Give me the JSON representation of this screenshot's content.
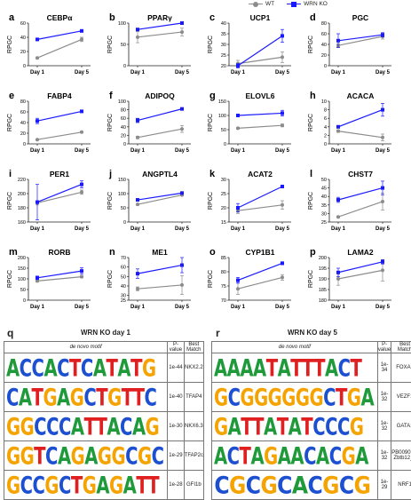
{
  "legend": {
    "wt_label": "WT",
    "ko_label": "WRN KO",
    "wt_color": "#8c8c8c",
    "ko_color": "#1a1aff"
  },
  "chart_data": [
    {
      "panel": "a",
      "title": "CEBPα",
      "type": "line",
      "ylabel": "RPGC",
      "categories": [
        "Day 1",
        "Day 5"
      ],
      "ylim": [
        0,
        60
      ],
      "yticks": [
        0,
        20,
        40,
        60
      ],
      "series": [
        {
          "name": "WT",
          "values": [
            11,
            37
          ],
          "err": [
            1,
            3
          ]
        },
        {
          "name": "WRN KO",
          "values": [
            37,
            49
          ],
          "err": [
            1,
            1
          ]
        }
      ]
    },
    {
      "panel": "b",
      "title": "PPARγ",
      "type": "line",
      "ylabel": "RPGC",
      "categories": [
        "Day 1",
        "Day 5"
      ],
      "ylim": [
        0,
        100
      ],
      "yticks": [
        0,
        50,
        100
      ],
      "series": [
        {
          "name": "WT",
          "values": [
            67,
            79
          ],
          "err": [
            13,
            9
          ]
        },
        {
          "name": "WRN KO",
          "values": [
            85,
            100
          ],
          "err": [
            2,
            2
          ]
        }
      ]
    },
    {
      "panel": "c",
      "title": "UCP1",
      "type": "line",
      "ylabel": "RPGC",
      "categories": [
        "Day 1",
        "Day 5"
      ],
      "ylim": [
        20,
        40
      ],
      "yticks": [
        20,
        25,
        30,
        35,
        40
      ],
      "series": [
        {
          "name": "WT",
          "values": [
            21,
            24
          ],
          "err": [
            1.5,
            2.5
          ]
        },
        {
          "name": "WRN KO",
          "values": [
            20,
            34
          ],
          "err": [
            1,
            3
          ]
        }
      ]
    },
    {
      "panel": "d",
      "title": "PGC",
      "type": "line",
      "ylabel": "RPGC",
      "categories": [
        "Day 1",
        "Day 5"
      ],
      "ylim": [
        0,
        80
      ],
      "yticks": [
        0,
        20,
        40,
        60,
        80
      ],
      "series": [
        {
          "name": "WT",
          "values": [
            38,
            55
          ],
          "err": [
            3,
            5
          ]
        },
        {
          "name": "WRN KO",
          "values": [
            47,
            58
          ],
          "err": [
            13,
            4
          ]
        }
      ]
    },
    {
      "panel": "e",
      "title": "FABP4",
      "type": "line",
      "ylabel": "RPGC",
      "categories": [
        "Day 1",
        "Day 5"
      ],
      "ylim": [
        0,
        80
      ],
      "yticks": [
        0,
        20,
        40,
        60,
        80
      ],
      "series": [
        {
          "name": "WT",
          "values": [
            8,
            22
          ],
          "err": [
            1,
            1
          ]
        },
        {
          "name": "WRN KO",
          "values": [
            43,
            61
          ],
          "err": [
            5,
            1
          ]
        }
      ]
    },
    {
      "panel": "f",
      "title": "ADIPOQ",
      "type": "line",
      "ylabel": "RPGC",
      "categories": [
        "Day 1",
        "Day 5"
      ],
      "ylim": [
        0,
        100
      ],
      "yticks": [
        0,
        20,
        40,
        60,
        80,
        100
      ],
      "series": [
        {
          "name": "WT",
          "values": [
            15,
            35
          ],
          "err": [
            3,
            8
          ]
        },
        {
          "name": "WRN KO",
          "values": [
            55,
            82
          ],
          "err": [
            5,
            2
          ]
        }
      ]
    },
    {
      "panel": "g",
      "title": "ELOVL6",
      "type": "line",
      "ylabel": "RPGC",
      "categories": [
        "Day 1",
        "Day 5"
      ],
      "ylim": [
        0,
        150
      ],
      "yticks": [
        0,
        50,
        100,
        150
      ],
      "series": [
        {
          "name": "WT",
          "values": [
            55,
            65
          ],
          "err": [
            3,
            5
          ]
        },
        {
          "name": "WRN KO",
          "values": [
            100,
            108
          ],
          "err": [
            3,
            10
          ]
        }
      ]
    },
    {
      "panel": "h",
      "title": "ACACA",
      "type": "line",
      "ylabel": "RPGC",
      "categories": [
        "Day 1",
        "Day 5"
      ],
      "ylim": [
        0,
        10
      ],
      "yticks": [
        0,
        2,
        4,
        6,
        8,
        10
      ],
      "series": [
        {
          "name": "WT",
          "values": [
            3,
            1.5
          ],
          "err": [
            0.3,
            0.8
          ]
        },
        {
          "name": "WRN KO",
          "values": [
            4,
            8
          ],
          "err": [
            0.2,
            1.5
          ]
        }
      ]
    },
    {
      "panel": "i",
      "title": "PER1",
      "type": "line",
      "ylabel": "RPGC",
      "categories": [
        "Day 1",
        "Day 5"
      ],
      "ylim": [
        160,
        220
      ],
      "yticks": [
        160,
        180,
        200,
        220
      ],
      "series": [
        {
          "name": "WT",
          "values": [
            187,
            202
          ],
          "err": [
            3,
            3
          ]
        },
        {
          "name": "WRN KO",
          "values": [
            188,
            213
          ],
          "err": [
            25,
            5
          ]
        }
      ]
    },
    {
      "panel": "j",
      "title": "ANGPTL4",
      "type": "line",
      "ylabel": "RPGC",
      "categories": [
        "Day 1",
        "Day 5"
      ],
      "ylim": [
        0,
        150
      ],
      "yticks": [
        0,
        50,
        100,
        150
      ],
      "series": [
        {
          "name": "WT",
          "values": [
            62,
            95
          ],
          "err": [
            3,
            3
          ]
        },
        {
          "name": "WRN KO",
          "values": [
            78,
            102
          ],
          "err": [
            2,
            3
          ]
        }
      ]
    },
    {
      "panel": "k",
      "title": "ACAT2",
      "type": "line",
      "ylabel": "RPGC",
      "categories": [
        "Day 1",
        "Day 5"
      ],
      "ylim": [
        15,
        30
      ],
      "yticks": [
        15,
        20,
        25,
        30
      ],
      "series": [
        {
          "name": "WT",
          "values": [
            19,
            21
          ],
          "err": [
            1,
            1.5
          ]
        },
        {
          "name": "WRN KO",
          "values": [
            20,
            27.5
          ],
          "err": [
            1.5,
            0.5
          ]
        }
      ]
    },
    {
      "panel": "l",
      "title": "CHST7",
      "type": "line",
      "ylabel": "RPGC",
      "categories": [
        "Day 1",
        "Day 5"
      ],
      "ylim": [
        25,
        50
      ],
      "yticks": [
        25,
        30,
        35,
        40,
        45,
        50
      ],
      "series": [
        {
          "name": "WT",
          "values": [
            28,
            37
          ],
          "err": [
            0.5,
            5
          ]
        },
        {
          "name": "WRN KO",
          "values": [
            38,
            45
          ],
          "err": [
            1.5,
            4
          ]
        }
      ]
    },
    {
      "panel": "m",
      "title": "RORB",
      "type": "line",
      "ylabel": "RPGC",
      "categories": [
        "Day 1",
        "Day 5"
      ],
      "ylim": [
        0,
        200
      ],
      "yticks": [
        0,
        50,
        100,
        150,
        200
      ],
      "series": [
        {
          "name": "WT",
          "values": [
            90,
            110
          ],
          "err": [
            5,
            5
          ]
        },
        {
          "name": "WRN KO",
          "values": [
            105,
            137
          ],
          "err": [
            8,
            15
          ]
        }
      ]
    },
    {
      "panel": "n",
      "title": "ME1",
      "type": "line",
      "ylabel": "RPGC",
      "categories": [
        "Day 1",
        "Day 5"
      ],
      "ylim": [
        25,
        70
      ],
      "yticks": [
        25,
        30,
        40,
        50,
        60,
        70
      ],
      "series": [
        {
          "name": "WT",
          "values": [
            37,
            41
          ],
          "err": [
            2,
            10
          ]
        },
        {
          "name": "WRN KO",
          "values": [
            53,
            62
          ],
          "err": [
            5,
            8
          ]
        }
      ]
    },
    {
      "panel": "o",
      "title": "CYP1B1",
      "type": "line",
      "ylabel": "RPGC",
      "categories": [
        "Day 1",
        "Day 5"
      ],
      "ylim": [
        70,
        85
      ],
      "yticks": [
        70,
        75,
        80,
        85
      ],
      "series": [
        {
          "name": "WT",
          "values": [
            74,
            78
          ],
          "err": [
            2,
            1
          ]
        },
        {
          "name": "WRN KO",
          "values": [
            77,
            83
          ],
          "err": [
            1,
            0.5
          ]
        }
      ]
    },
    {
      "panel": "p",
      "title": "LAMA2",
      "type": "line",
      "ylabel": "RPGC",
      "categories": [
        "Day 1",
        "Day 5"
      ],
      "ylim": [
        180,
        200
      ],
      "yticks": [
        180,
        185,
        190,
        195,
        200
      ],
      "series": [
        {
          "name": "WT",
          "values": [
            190,
            194
          ],
          "err": [
            3,
            5
          ]
        },
        {
          "name": "WRN KO",
          "values": [
            193,
            198
          ],
          "err": [
            2,
            1
          ]
        }
      ]
    }
  ],
  "motif_tables": [
    {
      "letter": "q",
      "title": "WRN KO day 1",
      "headers": {
        "motif": "de novo motif",
        "pvalue": "P-value",
        "match": "Best Match"
      },
      "rows": [
        {
          "motif": "ACCACTCATATG",
          "pvalue": "1e-44",
          "match": "NKX2.2"
        },
        {
          "motif": "CATGAGCTGTTC",
          "pvalue": "1e-40",
          "match": "TFAP4"
        },
        {
          "motif": "GGCCCATTACAG",
          "pvalue": "1e-30",
          "match": "NKX6.3"
        },
        {
          "motif": "GGTCAGAGGCGC",
          "pvalue": "1e-29",
          "match": "TFAP2c"
        },
        {
          "motif": "GCCGCTGAGATT",
          "pvalue": "1e-28",
          "match": "GFI1b"
        }
      ]
    },
    {
      "letter": "r",
      "title": "WRN KO day 5",
      "headers": {
        "motif": "de novo motif",
        "pvalue": "P-value",
        "match": "Best Match"
      },
      "rows": [
        {
          "motif": "AAAATATTTACT",
          "pvalue": "1e-34",
          "match": "FOXA1"
        },
        {
          "motif": "GCGGGGGGCTGA",
          "pvalue": "1e-32",
          "match": "VEZF1"
        },
        {
          "motif": "GATTATATCCCG",
          "pvalue": "1e-32",
          "match": "GATA1"
        },
        {
          "motif": "ACTAGAACACGA",
          "pvalue": "1e-32",
          "match": "PB0090.1_ Zbtb12_1"
        },
        {
          "motif": "CGCGCACGCG",
          "pvalue": "1e-29",
          "match": "NRF1"
        }
      ]
    }
  ]
}
